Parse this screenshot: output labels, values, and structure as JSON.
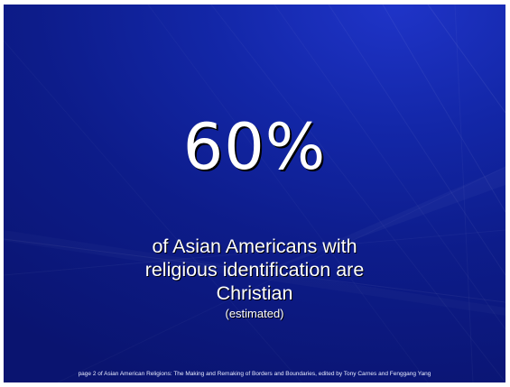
{
  "slide": {
    "statistic": "60%",
    "caption_lines": [
      "of Asian Americans with",
      "religious identification are",
      "Christian"
    ],
    "note": "(estimated)",
    "footer": "page 2 of Asian American Religions: The Making and Remaking of Borders and Boundaries, edited by Tony Carnes and Fenggang Yang"
  },
  "colors": {
    "background": "#0d1c8a",
    "text": "#ffffff",
    "frame": "#ffffff"
  }
}
